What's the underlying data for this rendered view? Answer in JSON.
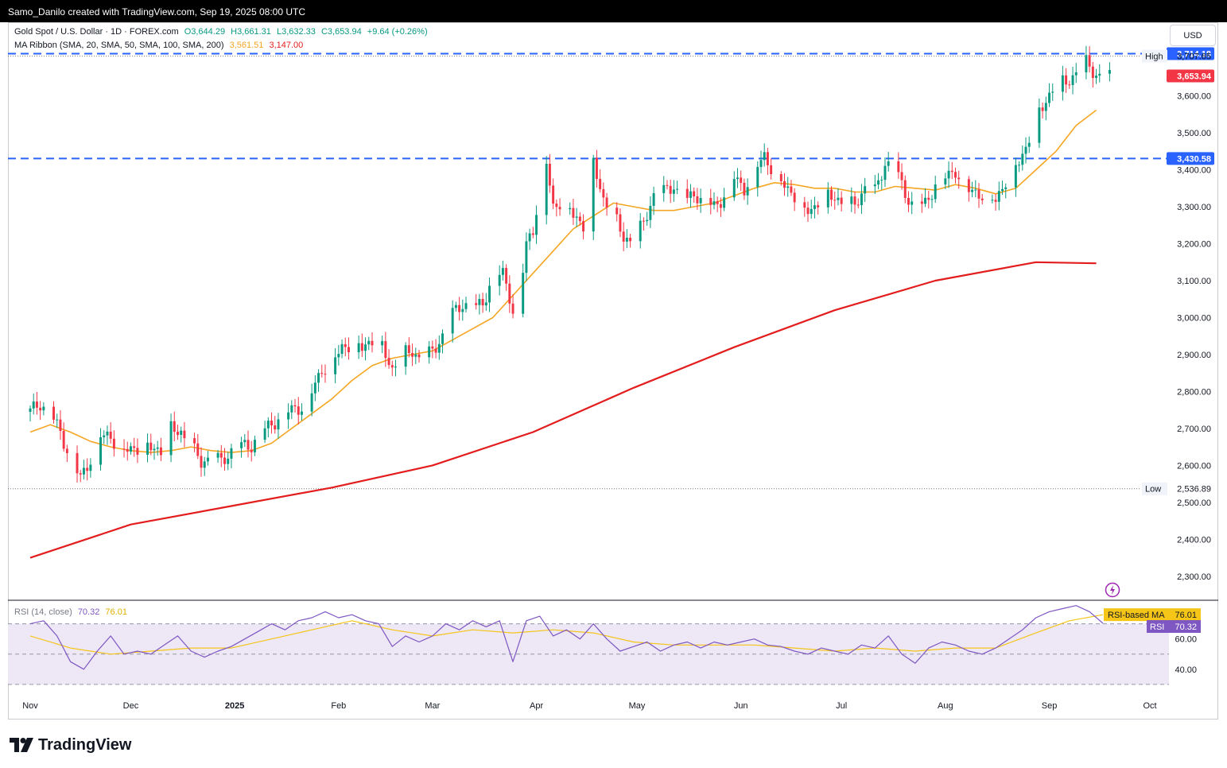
{
  "header": {
    "credit": "Samo_Danilo created with TradingView.com, Sep 19, 2025 08:00 UTC"
  },
  "legend": {
    "symbol": "Gold Spot / U.S. Dollar · 1D · FOREX.com",
    "open": "O3,644.29",
    "high": "H3,661.31",
    "low": "L3,632.33",
    "close": "C3,653.94",
    "change": "+9.64 (+0.26%)",
    "ma_label": "MA Ribbon (SMA, 20, SMA, 50, SMA, 100, SMA, 200)",
    "ma_val1": "3,561.51",
    "ma_val2": "3,147.00",
    "rsi_label": "RSI (14, close)",
    "rsi_val": "70.32",
    "rsi_ma_val": "76.01"
  },
  "currency_button": "USD",
  "brand": {
    "name": "TradingView",
    "icon": "tradingview-logo-icon"
  },
  "colors": {
    "up": "#089981",
    "down": "#f23645",
    "ma20": "#f5a623",
    "ma200": "#e31d1d",
    "level_line": "#2962ff",
    "rsi_line": "#7e57c2",
    "rsi_ma": "#f5c518",
    "rsi_band": "#ede7f6"
  },
  "chart_data": {
    "type": "candlestick",
    "symbol": "XAUUSD",
    "timeframe": "1D",
    "price_axis": {
      "ticks": [
        2300,
        2400,
        2500,
        2600,
        2700,
        2800,
        2900,
        3000,
        3100,
        3200,
        3300,
        3400,
        3500,
        3600
      ],
      "tick_labels": [
        "2,300.00",
        "2,400.00",
        "2,500.00",
        "2,600.00",
        "2,700.00",
        "2,800.00",
        "2,900.00",
        "3,000.00",
        "3,100.00",
        "3,200.00",
        "3,300.00",
        "3,400.00",
        "3,500.00",
        "3,600.00"
      ],
      "range": [
        2235,
        3795
      ]
    },
    "time_axis": {
      "labels": [
        {
          "label": "Nov",
          "day": 0
        },
        {
          "label": "Dec",
          "day": 30
        },
        {
          "label": "2025",
          "day": 61
        },
        {
          "label": "Feb",
          "day": 92
        },
        {
          "label": "Mar",
          "day": 120
        },
        {
          "label": "Apr",
          "day": 151
        },
        {
          "label": "May",
          "day": 181
        },
        {
          "label": "Jun",
          "day": 212
        },
        {
          "label": "Jul",
          "day": 242
        },
        {
          "label": "Aug",
          "day": 273
        },
        {
          "label": "Sep",
          "day": 304
        },
        {
          "label": "Oct",
          "day": 334
        }
      ],
      "last_day": 322
    },
    "levels": [
      {
        "name": "resistance",
        "value": 3714.18,
        "label": "3,714.18"
      },
      {
        "name": "support",
        "value": 3430.58,
        "label": "3,430.58"
      }
    ],
    "high": {
      "label": "High",
      "value": 3707.65,
      "value_label": "3,707.65"
    },
    "low": {
      "label": "Low",
      "value": 2536.89,
      "value_label": "2,536.89"
    },
    "last_price": {
      "value": 3653.94,
      "label": "3,653.94"
    },
    "closes_path": [
      [
        0,
        2745
      ],
      [
        3,
        2770
      ],
      [
        6,
        2740
      ],
      [
        9,
        2690
      ],
      [
        12,
        2620
      ],
      [
        15,
        2565
      ],
      [
        18,
        2620
      ],
      [
        21,
        2680
      ],
      [
        24,
        2680
      ],
      [
        27,
        2640
      ],
      [
        30,
        2645
      ],
      [
        33,
        2650
      ],
      [
        36,
        2650
      ],
      [
        39,
        2640
      ],
      [
        42,
        2700
      ],
      [
        45,
        2690
      ],
      [
        48,
        2650
      ],
      [
        51,
        2610
      ],
      [
        54,
        2620
      ],
      [
        57,
        2610
      ],
      [
        60,
        2640
      ],
      [
        63,
        2650
      ],
      [
        66,
        2655
      ],
      [
        69,
        2690
      ],
      [
        72,
        2710
      ],
      [
        75,
        2740
      ],
      [
        78,
        2750
      ],
      [
        81,
        2760
      ],
      [
        84,
        2800
      ],
      [
        87,
        2860
      ],
      [
        90,
        2880
      ],
      [
        93,
        2920
      ],
      [
        96,
        2930
      ],
      [
        99,
        2920
      ],
      [
        102,
        2940
      ],
      [
        105,
        2920
      ],
      [
        108,
        2860
      ],
      [
        111,
        2900
      ],
      [
        114,
        2910
      ],
      [
        117,
        2880
      ],
      [
        120,
        2910
      ],
      [
        123,
        2950
      ],
      [
        126,
        3010
      ],
      [
        129,
        3040
      ],
      [
        132,
        3020
      ],
      [
        135,
        3040
      ],
      [
        138,
        3110
      ],
      [
        141,
        3120
      ],
      [
        143,
        3060
      ],
      [
        145,
        2980
      ],
      [
        148,
        3200
      ],
      [
        150,
        3240
      ],
      [
        152,
        3350
      ],
      [
        154,
        3420
      ],
      [
        156,
        3300
      ],
      [
        159,
        3320
      ],
      [
        162,
        3280
      ],
      [
        165,
        3250
      ],
      [
        168,
        3420
      ],
      [
        171,
        3320
      ],
      [
        174,
        3280
      ],
      [
        177,
        3220
      ],
      [
        180,
        3200
      ],
      [
        183,
        3260
      ],
      [
        186,
        3330
      ],
      [
        189,
        3340
      ],
      [
        192,
        3360
      ],
      [
        195,
        3300
      ],
      [
        198,
        3340
      ],
      [
        201,
        3310
      ],
      [
        204,
        3300
      ],
      [
        207,
        3330
      ],
      [
        210,
        3380
      ],
      [
        213,
        3350
      ],
      [
        216,
        3400
      ],
      [
        219,
        3440
      ],
      [
        222,
        3390
      ],
      [
        225,
        3360
      ],
      [
        228,
        3330
      ],
      [
        231,
        3290
      ],
      [
        234,
        3300
      ],
      [
        237,
        3330
      ],
      [
        240,
        3330
      ],
      [
        243,
        3300
      ],
      [
        246,
        3310
      ],
      [
        249,
        3350
      ],
      [
        252,
        3340
      ],
      [
        255,
        3420
      ],
      [
        258,
        3400
      ],
      [
        261,
        3340
      ],
      [
        264,
        3290
      ],
      [
        267,
        3310
      ],
      [
        270,
        3360
      ],
      [
        273,
        3380
      ],
      [
        276,
        3400
      ],
      [
        279,
        3350
      ],
      [
        282,
        3340
      ],
      [
        285,
        3330
      ],
      [
        288,
        3320
      ],
      [
        291,
        3370
      ],
      [
        294,
        3410
      ],
      [
        297,
        3460
      ],
      [
        300,
        3540
      ],
      [
        303,
        3590
      ],
      [
        306,
        3630
      ],
      [
        309,
        3640
      ],
      [
        312,
        3660
      ],
      [
        315,
        3690
      ],
      [
        318,
        3660
      ],
      [
        320,
        3640
      ],
      [
        322,
        3653.94
      ]
    ],
    "sma20_path": [
      [
        0,
        2690
      ],
      [
        6,
        2710
      ],
      [
        12,
        2690
      ],
      [
        18,
        2665
      ],
      [
        24,
        2650
      ],
      [
        30,
        2640
      ],
      [
        36,
        2635
      ],
      [
        42,
        2640
      ],
      [
        48,
        2650
      ],
      [
        54,
        2640
      ],
      [
        60,
        2635
      ],
      [
        66,
        2640
      ],
      [
        72,
        2660
      ],
      [
        78,
        2700
      ],
      [
        84,
        2740
      ],
      [
        90,
        2780
      ],
      [
        96,
        2830
      ],
      [
        102,
        2870
      ],
      [
        108,
        2890
      ],
      [
        114,
        2900
      ],
      [
        120,
        2910
      ],
      [
        126,
        2940
      ],
      [
        132,
        2970
      ],
      [
        138,
        3000
      ],
      [
        144,
        3060
      ],
      [
        150,
        3120
      ],
      [
        156,
        3180
      ],
      [
        162,
        3240
      ],
      [
        168,
        3275
      ],
      [
        174,
        3310
      ],
      [
        180,
        3300
      ],
      [
        186,
        3290
      ],
      [
        192,
        3290
      ],
      [
        198,
        3300
      ],
      [
        204,
        3310
      ],
      [
        210,
        3330
      ],
      [
        216,
        3350
      ],
      [
        222,
        3365
      ],
      [
        228,
        3360
      ],
      [
        234,
        3350
      ],
      [
        240,
        3350
      ],
      [
        246,
        3340
      ],
      [
        252,
        3340
      ],
      [
        258,
        3355
      ],
      [
        264,
        3350
      ],
      [
        270,
        3345
      ],
      [
        276,
        3360
      ],
      [
        282,
        3350
      ],
      [
        288,
        3335
      ],
      [
        294,
        3350
      ],
      [
        300,
        3400
      ],
      [
        306,
        3450
      ],
      [
        312,
        3520
      ],
      [
        318,
        3561.51
      ]
    ],
    "sma200_path": [
      [
        0,
        2350
      ],
      [
        30,
        2440
      ],
      [
        60,
        2490
      ],
      [
        90,
        2540
      ],
      [
        120,
        2600
      ],
      [
        150,
        2690
      ],
      [
        180,
        2810
      ],
      [
        210,
        2920
      ],
      [
        240,
        3020
      ],
      [
        270,
        3100
      ],
      [
        300,
        3150
      ],
      [
        318,
        3147
      ]
    ],
    "rsi": {
      "ticks": [
        40,
        60
      ],
      "tick_labels": [
        "40.00",
        "60.00"
      ],
      "band": [
        30,
        70
      ],
      "range": [
        20,
        85
      ],
      "label": "RSI",
      "value": 70.32,
      "value_label": "70.32",
      "ma_label": "RSI-based MA",
      "ma_value": 76.01,
      "ma_value_label": "76.01",
      "path": [
        [
          0,
          70
        ],
        [
          4,
          72
        ],
        [
          8,
          62
        ],
        [
          12,
          45
        ],
        [
          16,
          40
        ],
        [
          20,
          52
        ],
        [
          24,
          62
        ],
        [
          28,
          50
        ],
        [
          32,
          52
        ],
        [
          36,
          50
        ],
        [
          40,
          56
        ],
        [
          44,
          62
        ],
        [
          48,
          52
        ],
        [
          52,
          48
        ],
        [
          56,
          52
        ],
        [
          60,
          55
        ],
        [
          64,
          60
        ],
        [
          68,
          65
        ],
        [
          72,
          70
        ],
        [
          76,
          66
        ],
        [
          80,
          72
        ],
        [
          84,
          74
        ],
        [
          88,
          78
        ],
        [
          92,
          74
        ],
        [
          96,
          76
        ],
        [
          100,
          72
        ],
        [
          104,
          70
        ],
        [
          108,
          55
        ],
        [
          112,
          62
        ],
        [
          116,
          58
        ],
        [
          120,
          62
        ],
        [
          124,
          70
        ],
        [
          128,
          66
        ],
        [
          132,
          72
        ],
        [
          136,
          68
        ],
        [
          140,
          72
        ],
        [
          144,
          45
        ],
        [
          148,
          72
        ],
        [
          152,
          75
        ],
        [
          156,
          62
        ],
        [
          160,
          66
        ],
        [
          164,
          60
        ],
        [
          168,
          70
        ],
        [
          172,
          60
        ],
        [
          176,
          52
        ],
        [
          180,
          55
        ],
        [
          184,
          58
        ],
        [
          188,
          52
        ],
        [
          192,
          56
        ],
        [
          196,
          58
        ],
        [
          200,
          54
        ],
        [
          204,
          58
        ],
        [
          208,
          56
        ],
        [
          212,
          58
        ],
        [
          216,
          60
        ],
        [
          220,
          56
        ],
        [
          224,
          55
        ],
        [
          228,
          52
        ],
        [
          232,
          50
        ],
        [
          236,
          54
        ],
        [
          240,
          52
        ],
        [
          244,
          50
        ],
        [
          248,
          56
        ],
        [
          252,
          54
        ],
        [
          256,
          62
        ],
        [
          260,
          50
        ],
        [
          264,
          44
        ],
        [
          268,
          54
        ],
        [
          272,
          58
        ],
        [
          276,
          56
        ],
        [
          280,
          52
        ],
        [
          284,
          50
        ],
        [
          288,
          54
        ],
        [
          292,
          60
        ],
        [
          296,
          66
        ],
        [
          300,
          74
        ],
        [
          304,
          78
        ],
        [
          308,
          80
        ],
        [
          312,
          82
        ],
        [
          316,
          78
        ],
        [
          320,
          70.32
        ]
      ],
      "ma_path": [
        [
          0,
          62
        ],
        [
          12,
          54
        ],
        [
          24,
          50
        ],
        [
          36,
          52
        ],
        [
          48,
          54
        ],
        [
          60,
          54
        ],
        [
          72,
          60
        ],
        [
          84,
          66
        ],
        [
          96,
          72
        ],
        [
          108,
          66
        ],
        [
          120,
          62
        ],
        [
          132,
          66
        ],
        [
          144,
          64
        ],
        [
          156,
          66
        ],
        [
          168,
          64
        ],
        [
          180,
          58
        ],
        [
          192,
          56
        ],
        [
          204,
          56
        ],
        [
          216,
          56
        ],
        [
          228,
          54
        ],
        [
          240,
          52
        ],
        [
          252,
          54
        ],
        [
          264,
          52
        ],
        [
          276,
          54
        ],
        [
          288,
          54
        ],
        [
          300,
          64
        ],
        [
          310,
          72
        ],
        [
          320,
          76.01
        ]
      ]
    }
  }
}
